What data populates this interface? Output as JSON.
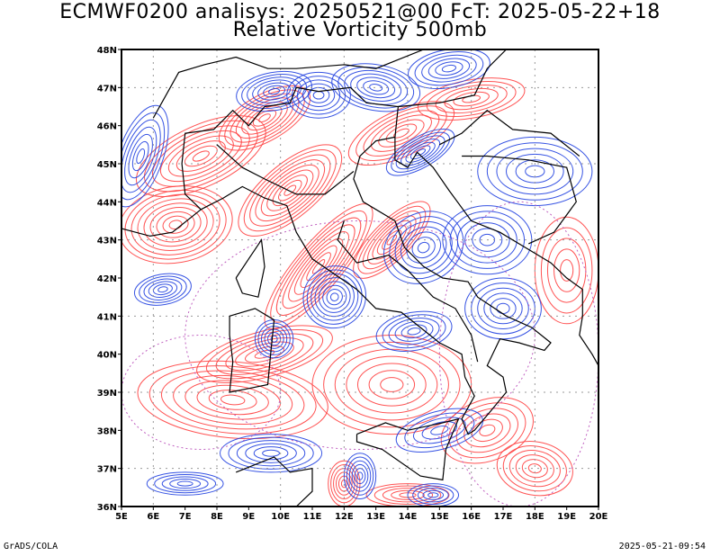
{
  "title": {
    "line1": "ECMWF0200 analisys: 20250521@00 FcT: 2025-05-22+18",
    "line2": "Relative Vorticity 500mb"
  },
  "map": {
    "lon_range": [
      5,
      20
    ],
    "lat_range": [
      36,
      48
    ],
    "lon_labels": [
      "5E",
      "6E",
      "7E",
      "8E",
      "9E",
      "10E",
      "11E",
      "12E",
      "13E",
      "14E",
      "15E",
      "16E",
      "17E",
      "18E",
      "19E",
      "20E"
    ],
    "lat_labels": [
      "36N",
      "37N",
      "38N",
      "39N",
      "40N",
      "41N",
      "42N",
      "43N",
      "44N",
      "45N",
      "46N",
      "47N",
      "48N"
    ],
    "grid_style": "dotted",
    "colors": {
      "positive": "#ff4040",
      "negative": "#2040e0",
      "zero": "#c060c0",
      "borders": "#000000"
    }
  },
  "footer": {
    "left": "GrADS/COLA",
    "right": "2025-05-21-09:54"
  }
}
